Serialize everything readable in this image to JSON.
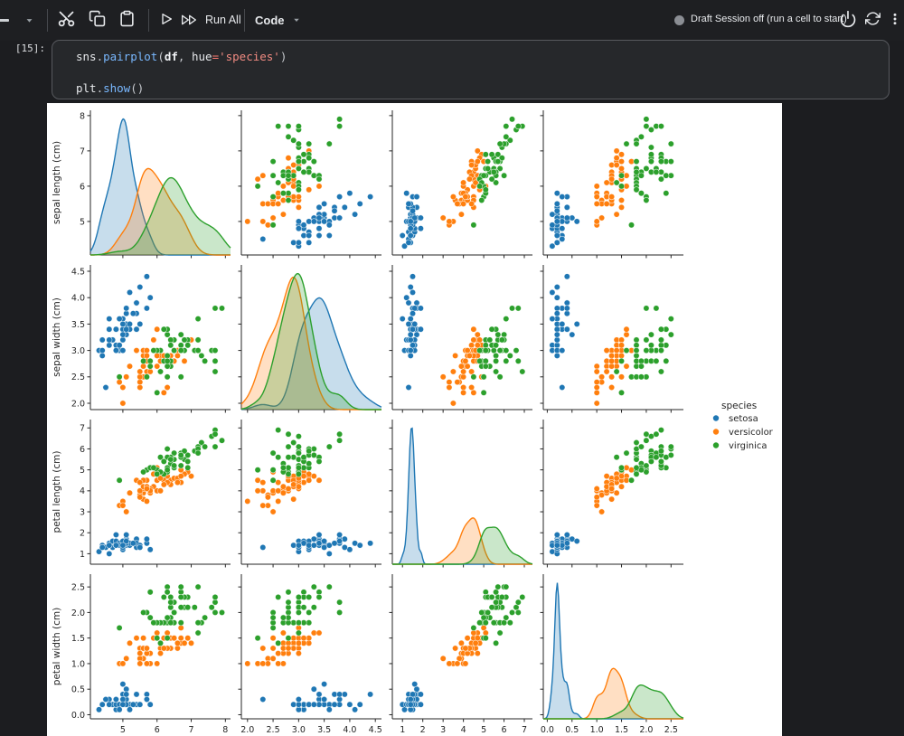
{
  "toolbar": {
    "run_all_label": "Run All",
    "code_label": "Code",
    "status_text": "Draft Session off (run a cell to start)",
    "icons": [
      "dash",
      "chevron-down",
      "cut",
      "copy",
      "paste",
      "run",
      "run-all",
      "code-dropdown-chevron",
      "status-dot",
      "power",
      "sync",
      "more-vertical"
    ]
  },
  "cell": {
    "execution_count": "[15]:",
    "code_lines": [
      [
        {
          "t": "sns",
          "c": "v"
        },
        {
          "t": ".",
          "c": "p"
        },
        {
          "t": "pairplot",
          "c": "f"
        },
        {
          "t": "(",
          "c": "p"
        },
        {
          "t": "df",
          "c": "b"
        },
        {
          "t": ", ",
          "c": "p"
        },
        {
          "t": "hue",
          "c": "v"
        },
        {
          "t": "=",
          "c": "o"
        },
        {
          "t": "'species'",
          "c": "s"
        },
        {
          "t": ")",
          "c": "p"
        }
      ],
      [],
      [
        {
          "t": "plt",
          "c": "v"
        },
        {
          "t": ".",
          "c": "p"
        },
        {
          "t": "show",
          "c": "f"
        },
        {
          "t": "(",
          "c": "p"
        },
        {
          "t": ")",
          "c": "p"
        }
      ]
    ]
  },
  "chart_data": {
    "type": "scatter",
    "subtype": "pairplot",
    "hue": "species",
    "grid": "off",
    "variables": [
      {
        "label": "sepal length (cm)",
        "domain": [
          4.05,
          8.15
        ],
        "ticks": [
          5,
          6,
          7,
          8
        ],
        "tick_labels": [
          "5",
          "6",
          "7",
          "8"
        ]
      },
      {
        "label": "sepal width (cm)",
        "domain": [
          1.88,
          4.62
        ],
        "ticks": [
          2.0,
          2.5,
          3.0,
          3.5,
          4.0,
          4.5
        ],
        "tick_labels": [
          "2.0",
          "2.5",
          "3.0",
          "3.5",
          "4.0",
          "4.5"
        ]
      },
      {
        "label": "petal length (cm)",
        "domain": [
          0.5,
          7.4
        ],
        "ticks": [
          1,
          2,
          3,
          4,
          5,
          6,
          7
        ],
        "tick_labels": [
          "1",
          "2",
          "3",
          "4",
          "5",
          "6",
          "7"
        ]
      },
      {
        "label": "petal width (cm)",
        "domain": [
          -0.08,
          2.75
        ],
        "ticks": [
          0,
          0.5,
          1.0,
          1.5,
          2.0,
          2.5
        ],
        "tick_labels": [
          "0.0",
          "0.5",
          "1.0",
          "1.5",
          "2.0",
          "2.5"
        ]
      }
    ],
    "legend": {
      "title": "species",
      "position": "right",
      "entries": [
        {
          "label": "setosa",
          "color": "#1f77b4"
        },
        {
          "label": "versicolor",
          "color": "#ff7f0e"
        },
        {
          "label": "virginica",
          "color": "#2ca02c"
        }
      ]
    },
    "series": [
      {
        "name": "setosa",
        "color": "#1f77b4",
        "points": [
          [
            5.1,
            3.5,
            1.4,
            0.2
          ],
          [
            4.9,
            3.0,
            1.4,
            0.2
          ],
          [
            4.7,
            3.2,
            1.3,
            0.2
          ],
          [
            4.6,
            3.1,
            1.5,
            0.2
          ],
          [
            5.0,
            3.6,
            1.4,
            0.2
          ],
          [
            5.4,
            3.9,
            1.7,
            0.4
          ],
          [
            4.6,
            3.4,
            1.4,
            0.3
          ],
          [
            5.0,
            3.4,
            1.5,
            0.2
          ],
          [
            4.4,
            2.9,
            1.4,
            0.2
          ],
          [
            4.9,
            3.1,
            1.5,
            0.1
          ],
          [
            5.4,
            3.7,
            1.5,
            0.2
          ],
          [
            4.8,
            3.4,
            1.6,
            0.2
          ],
          [
            4.8,
            3.0,
            1.4,
            0.1
          ],
          [
            4.3,
            3.0,
            1.1,
            0.1
          ],
          [
            5.8,
            4.0,
            1.2,
            0.2
          ],
          [
            5.7,
            4.4,
            1.5,
            0.4
          ],
          [
            5.4,
            3.9,
            1.3,
            0.4
          ],
          [
            5.1,
            3.5,
            1.4,
            0.3
          ],
          [
            5.7,
            3.8,
            1.7,
            0.3
          ],
          [
            5.1,
            3.8,
            1.5,
            0.3
          ],
          [
            5.4,
            3.4,
            1.7,
            0.2
          ],
          [
            5.1,
            3.7,
            1.5,
            0.4
          ],
          [
            4.6,
            3.6,
            1.0,
            0.2
          ],
          [
            5.1,
            3.3,
            1.7,
            0.5
          ],
          [
            4.8,
            3.4,
            1.9,
            0.2
          ],
          [
            5.0,
            3.0,
            1.6,
            0.2
          ],
          [
            5.0,
            3.4,
            1.6,
            0.4
          ],
          [
            5.2,
            3.5,
            1.5,
            0.2
          ],
          [
            5.2,
            3.4,
            1.4,
            0.2
          ],
          [
            4.7,
            3.2,
            1.6,
            0.2
          ],
          [
            4.8,
            3.1,
            1.6,
            0.2
          ],
          [
            5.4,
            3.4,
            1.5,
            0.4
          ],
          [
            5.2,
            4.1,
            1.5,
            0.1
          ],
          [
            5.5,
            4.2,
            1.4,
            0.2
          ],
          [
            4.9,
            3.1,
            1.5,
            0.2
          ],
          [
            5.0,
            3.2,
            1.2,
            0.2
          ],
          [
            5.5,
            3.5,
            1.3,
            0.2
          ],
          [
            4.9,
            3.6,
            1.4,
            0.1
          ],
          [
            4.4,
            3.0,
            1.3,
            0.2
          ],
          [
            5.1,
            3.4,
            1.5,
            0.2
          ],
          [
            5.0,
            3.5,
            1.3,
            0.3
          ],
          [
            4.5,
            2.3,
            1.3,
            0.3
          ],
          [
            4.4,
            3.2,
            1.3,
            0.2
          ],
          [
            5.0,
            3.5,
            1.6,
            0.6
          ],
          [
            5.1,
            3.8,
            1.9,
            0.4
          ],
          [
            4.8,
            3.0,
            1.4,
            0.3
          ],
          [
            5.1,
            3.8,
            1.6,
            0.2
          ],
          [
            4.6,
            3.2,
            1.4,
            0.2
          ],
          [
            5.3,
            3.7,
            1.5,
            0.2
          ],
          [
            5.0,
            3.3,
            1.4,
            0.2
          ]
        ]
      },
      {
        "name": "versicolor",
        "color": "#ff7f0e",
        "points": [
          [
            7.0,
            3.2,
            4.7,
            1.4
          ],
          [
            6.4,
            3.2,
            4.5,
            1.5
          ],
          [
            6.9,
            3.1,
            4.9,
            1.5
          ],
          [
            5.5,
            2.3,
            4.0,
            1.3
          ],
          [
            6.5,
            2.8,
            4.6,
            1.5
          ],
          [
            5.7,
            2.8,
            4.5,
            1.3
          ],
          [
            6.3,
            3.3,
            4.7,
            1.6
          ],
          [
            4.9,
            2.4,
            3.3,
            1.0
          ],
          [
            6.6,
            2.9,
            4.6,
            1.3
          ],
          [
            5.2,
            2.7,
            3.9,
            1.4
          ],
          [
            5.0,
            2.0,
            3.5,
            1.0
          ],
          [
            5.9,
            3.0,
            4.2,
            1.5
          ],
          [
            6.0,
            2.2,
            4.0,
            1.0
          ],
          [
            6.1,
            2.9,
            4.7,
            1.4
          ],
          [
            5.6,
            2.9,
            3.6,
            1.3
          ],
          [
            6.7,
            3.1,
            4.4,
            1.4
          ],
          [
            5.6,
            3.0,
            4.5,
            1.5
          ],
          [
            5.8,
            2.7,
            4.1,
            1.0
          ],
          [
            6.2,
            2.2,
            4.5,
            1.5
          ],
          [
            5.6,
            2.5,
            3.9,
            1.1
          ],
          [
            5.9,
            3.2,
            4.8,
            1.8
          ],
          [
            6.1,
            2.8,
            4.0,
            1.3
          ],
          [
            6.3,
            2.5,
            4.9,
            1.5
          ],
          [
            6.1,
            2.8,
            4.7,
            1.2
          ],
          [
            6.4,
            2.9,
            4.3,
            1.3
          ],
          [
            6.6,
            3.0,
            4.4,
            1.4
          ],
          [
            6.8,
            2.8,
            4.8,
            1.4
          ],
          [
            6.7,
            3.0,
            5.0,
            1.7
          ],
          [
            6.0,
            2.9,
            4.5,
            1.5
          ],
          [
            5.7,
            2.6,
            3.5,
            1.0
          ],
          [
            5.5,
            2.4,
            3.8,
            1.1
          ],
          [
            5.5,
            2.4,
            3.7,
            1.0
          ],
          [
            5.8,
            2.7,
            3.9,
            1.2
          ],
          [
            6.0,
            2.7,
            5.1,
            1.6
          ],
          [
            5.4,
            3.0,
            4.5,
            1.5
          ],
          [
            6.0,
            3.4,
            4.5,
            1.6
          ],
          [
            6.7,
            3.1,
            4.7,
            1.5
          ],
          [
            6.3,
            2.3,
            4.4,
            1.3
          ],
          [
            5.6,
            3.0,
            4.1,
            1.3
          ],
          [
            5.5,
            2.5,
            4.0,
            1.3
          ],
          [
            5.5,
            2.6,
            4.4,
            1.2
          ],
          [
            6.1,
            3.0,
            4.6,
            1.4
          ],
          [
            5.8,
            2.6,
            4.0,
            1.2
          ],
          [
            5.0,
            2.3,
            3.3,
            1.0
          ],
          [
            5.6,
            2.7,
            4.2,
            1.3
          ],
          [
            5.7,
            3.0,
            4.2,
            1.2
          ],
          [
            5.7,
            2.9,
            4.2,
            1.3
          ],
          [
            6.2,
            2.9,
            4.3,
            1.3
          ],
          [
            5.1,
            2.5,
            3.0,
            1.1
          ],
          [
            5.7,
            2.8,
            4.1,
            1.3
          ]
        ]
      },
      {
        "name": "virginica",
        "color": "#2ca02c",
        "points": [
          [
            6.3,
            3.3,
            6.0,
            2.5
          ],
          [
            5.8,
            2.7,
            5.1,
            1.9
          ],
          [
            7.1,
            3.0,
            5.9,
            2.1
          ],
          [
            6.3,
            2.9,
            5.6,
            1.8
          ],
          [
            6.5,
            3.0,
            5.8,
            2.2
          ],
          [
            7.6,
            3.0,
            6.6,
            2.1
          ],
          [
            4.9,
            2.5,
            4.5,
            1.7
          ],
          [
            7.3,
            2.9,
            6.3,
            1.8
          ],
          [
            6.7,
            2.5,
            5.8,
            1.8
          ],
          [
            7.2,
            3.6,
            6.1,
            2.5
          ],
          [
            6.5,
            3.2,
            5.1,
            2.0
          ],
          [
            6.4,
            2.7,
            5.3,
            1.9
          ],
          [
            6.8,
            3.0,
            5.5,
            2.1
          ],
          [
            5.7,
            2.5,
            5.0,
            2.0
          ],
          [
            5.8,
            2.8,
            5.1,
            2.4
          ],
          [
            6.4,
            3.2,
            5.3,
            2.3
          ],
          [
            6.5,
            3.0,
            5.5,
            1.8
          ],
          [
            7.7,
            3.8,
            6.7,
            2.2
          ],
          [
            7.7,
            2.6,
            6.9,
            2.3
          ],
          [
            6.0,
            2.2,
            5.0,
            1.5
          ],
          [
            6.9,
            3.2,
            5.7,
            2.3
          ],
          [
            5.6,
            2.8,
            4.9,
            2.0
          ],
          [
            7.7,
            2.8,
            6.7,
            2.0
          ],
          [
            6.3,
            2.7,
            4.9,
            1.8
          ],
          [
            6.7,
            3.3,
            5.7,
            2.1
          ],
          [
            7.2,
            3.2,
            6.0,
            1.8
          ],
          [
            6.2,
            2.8,
            4.8,
            1.8
          ],
          [
            6.1,
            3.0,
            4.9,
            1.8
          ],
          [
            6.4,
            2.8,
            5.6,
            2.1
          ],
          [
            7.2,
            3.0,
            5.8,
            1.6
          ],
          [
            7.4,
            2.8,
            6.1,
            1.9
          ],
          [
            7.9,
            3.8,
            6.4,
            2.0
          ],
          [
            6.4,
            2.8,
            5.6,
            2.2
          ],
          [
            6.3,
            2.8,
            5.1,
            1.5
          ],
          [
            6.1,
            2.6,
            5.6,
            1.4
          ],
          [
            7.7,
            3.0,
            6.1,
            2.3
          ],
          [
            6.3,
            3.4,
            5.6,
            2.4
          ],
          [
            6.4,
            3.1,
            5.5,
            1.8
          ],
          [
            6.0,
            3.0,
            4.8,
            1.8
          ],
          [
            6.9,
            3.1,
            5.4,
            2.1
          ],
          [
            6.7,
            3.1,
            5.6,
            2.4
          ],
          [
            6.9,
            3.1,
            5.1,
            2.3
          ],
          [
            5.8,
            2.7,
            5.1,
            1.9
          ],
          [
            6.8,
            3.2,
            5.9,
            2.3
          ],
          [
            6.7,
            3.3,
            5.7,
            2.5
          ],
          [
            6.7,
            3.0,
            5.2,
            2.3
          ],
          [
            6.3,
            2.5,
            5.0,
            1.9
          ],
          [
            6.5,
            3.0,
            5.2,
            2.0
          ],
          [
            6.2,
            3.4,
            5.4,
            2.3
          ],
          [
            5.9,
            3.0,
            5.1,
            1.8
          ]
        ]
      }
    ]
  }
}
